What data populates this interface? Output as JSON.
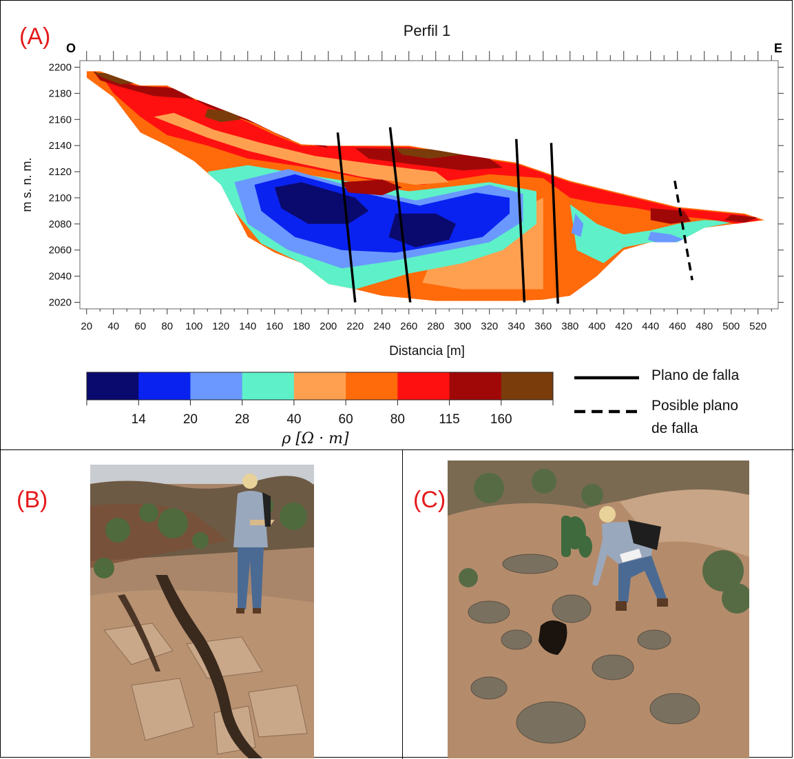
{
  "panels": {
    "a": "(A)",
    "b": "(B)",
    "c": "(C)"
  },
  "chart_data": {
    "type": "heatmap",
    "title": "Perfil 1",
    "xlabel": "Distancia [m]",
    "ylabel": "m s. n. m.",
    "xlim": [
      15,
      535
    ],
    "ylim": [
      2015,
      2205
    ],
    "x_ticks": [
      20,
      40,
      60,
      80,
      100,
      120,
      140,
      160,
      180,
      200,
      220,
      240,
      260,
      280,
      300,
      320,
      340,
      360,
      380,
      400,
      420,
      440,
      460,
      480,
      500,
      520
    ],
    "y_ticks": [
      2020,
      2040,
      2060,
      2080,
      2100,
      2120,
      2140,
      2160,
      2180,
      2200
    ],
    "direction_left": "O",
    "direction_right": "E",
    "colorbar": {
      "label": "ρ [Ω · m]",
      "boundaries": [
        14,
        20,
        28,
        40,
        60,
        80,
        115,
        160
      ],
      "colors": [
        "#0a0a6e",
        "#0a22f0",
        "#6a98ff",
        "#5ef0c8",
        "#ffa050",
        "#ff6a0a",
        "#ff1010",
        "#a00808",
        "#7a3c0a"
      ]
    },
    "profile_top": [
      [
        20,
        2197
      ],
      [
        30,
        2197
      ],
      [
        60,
        2186
      ],
      [
        80,
        2186
      ],
      [
        100,
        2176
      ],
      [
        140,
        2160
      ],
      [
        160,
        2150
      ],
      [
        180,
        2141
      ],
      [
        200,
        2140
      ],
      [
        260,
        2140
      ],
      [
        300,
        2133
      ],
      [
        340,
        2127
      ],
      [
        380,
        2113
      ],
      [
        420,
        2103
      ],
      [
        460,
        2093
      ],
      [
        510,
        2088
      ],
      [
        525,
        2083
      ]
    ],
    "profile_bottom": [
      [
        525,
        2083
      ],
      [
        480,
        2077
      ],
      [
        460,
        2066
      ],
      [
        440,
        2066
      ],
      [
        420,
        2060
      ],
      [
        400,
        2040
      ],
      [
        380,
        2025
      ],
      [
        360,
        2022
      ],
      [
        340,
        2021
      ],
      [
        320,
        2021
      ],
      [
        280,
        2021
      ],
      [
        260,
        2023
      ],
      [
        240,
        2025
      ],
      [
        220,
        2030
      ],
      [
        200,
        2034
      ],
      [
        180,
        2050
      ],
      [
        160,
        2058
      ],
      [
        140,
        2070
      ],
      [
        120,
        2110
      ],
      [
        100,
        2128
      ],
      [
        80,
        2140
      ],
      [
        60,
        2150
      ],
      [
        40,
        2177
      ],
      [
        20,
        2192
      ]
    ],
    "zones": [
      {
        "color_index": 5,
        "polygon": [
          [
            300,
            2100
          ],
          [
            360,
            2120
          ],
          [
            400,
            2098
          ],
          [
            380,
            2060
          ],
          [
            360,
            2030
          ],
          [
            300,
            2025
          ],
          [
            270,
            2028
          ],
          [
            260,
            2055
          ]
        ]
      },
      {
        "color_index": 4,
        "polygon": [
          [
            280,
            2060
          ],
          [
            320,
            2070
          ],
          [
            340,
            2090
          ],
          [
            360,
            2100
          ],
          [
            360,
            2030
          ],
          [
            300,
            2030
          ],
          [
            270,
            2035
          ]
        ]
      },
      {
        "color_index": 3,
        "polygon": [
          [
            110,
            2120
          ],
          [
            140,
            2125
          ],
          [
            200,
            2115
          ],
          [
            260,
            2105
          ],
          [
            320,
            2112
          ],
          [
            355,
            2105
          ],
          [
            355,
            2080
          ],
          [
            330,
            2060
          ],
          [
            300,
            2050
          ],
          [
            260,
            2042
          ],
          [
            220,
            2030
          ],
          [
            200,
            2034
          ],
          [
            180,
            2050
          ],
          [
            150,
            2065
          ],
          [
            130,
            2090
          ]
        ]
      },
      {
        "color_index": 3,
        "polygon": [
          [
            380,
            2095
          ],
          [
            400,
            2080
          ],
          [
            420,
            2072
          ],
          [
            440,
            2075
          ],
          [
            460,
            2080
          ],
          [
            480,
            2083
          ],
          [
            505,
            2082
          ],
          [
            480,
            2077
          ],
          [
            460,
            2066
          ],
          [
            440,
            2066
          ],
          [
            420,
            2062
          ],
          [
            405,
            2050
          ],
          [
            385,
            2060
          ]
        ]
      },
      {
        "color_index": 2,
        "polygon": [
          [
            130,
            2112
          ],
          [
            170,
            2122
          ],
          [
            220,
            2108
          ],
          [
            265,
            2098
          ],
          [
            320,
            2110
          ],
          [
            345,
            2103
          ],
          [
            345,
            2082
          ],
          [
            320,
            2066
          ],
          [
            290,
            2060
          ],
          [
            250,
            2052
          ],
          [
            210,
            2046
          ],
          [
            170,
            2060
          ],
          [
            140,
            2080
          ]
        ]
      },
      {
        "color_index": 2,
        "polygon": [
          [
            440,
            2074
          ],
          [
            455,
            2072
          ],
          [
            465,
            2068
          ],
          [
            450,
            2064
          ],
          [
            438,
            2068
          ]
        ]
      },
      {
        "color_index": 2,
        "polygon": [
          [
            384,
            2088
          ],
          [
            390,
            2080
          ],
          [
            388,
            2070
          ],
          [
            381,
            2073
          ]
        ]
      },
      {
        "color_index": 1,
        "polygon": [
          [
            145,
            2110
          ],
          [
            175,
            2118
          ],
          [
            225,
            2104
          ],
          [
            268,
            2094
          ],
          [
            310,
            2104
          ],
          [
            335,
            2100
          ],
          [
            335,
            2088
          ],
          [
            315,
            2070
          ],
          [
            290,
            2065
          ],
          [
            250,
            2058
          ],
          [
            210,
            2060
          ],
          [
            175,
            2070
          ],
          [
            150,
            2090
          ]
        ]
      },
      {
        "color_index": 0,
        "polygon": [
          [
            160,
            2108
          ],
          [
            180,
            2112
          ],
          [
            220,
            2100
          ],
          [
            230,
            2090
          ],
          [
            215,
            2080
          ],
          [
            185,
            2080
          ],
          [
            165,
            2092
          ]
        ]
      },
      {
        "color_index": 0,
        "polygon": [
          [
            250,
            2088
          ],
          [
            280,
            2088
          ],
          [
            295,
            2080
          ],
          [
            290,
            2068
          ],
          [
            265,
            2062
          ],
          [
            245,
            2070
          ]
        ]
      },
      {
        "color_index": 6,
        "polygon": [
          [
            30,
            2195
          ],
          [
            60,
            2185
          ],
          [
            80,
            2185
          ],
          [
            100,
            2175
          ],
          [
            140,
            2158
          ],
          [
            160,
            2148
          ],
          [
            180,
            2140
          ],
          [
            260,
            2139
          ],
          [
            300,
            2132
          ],
          [
            340,
            2126
          ],
          [
            380,
            2112
          ],
          [
            420,
            2102
          ],
          [
            460,
            2092
          ],
          [
            510,
            2087
          ],
          [
            522,
            2083
          ],
          [
            505,
            2080
          ],
          [
            480,
            2084
          ],
          [
            460,
            2086
          ],
          [
            430,
            2092
          ],
          [
            400,
            2096
          ],
          [
            380,
            2100
          ],
          [
            360,
            2115
          ],
          [
            320,
            2118
          ],
          [
            270,
            2110
          ],
          [
            230,
            2114
          ],
          [
            180,
            2124
          ],
          [
            140,
            2130
          ],
          [
            110,
            2140
          ],
          [
            80,
            2148
          ],
          [
            60,
            2162
          ],
          [
            40,
            2180
          ]
        ]
      },
      {
        "color_index": 4,
        "polygon": [
          [
            70,
            2162
          ],
          [
            110,
            2146
          ],
          [
            140,
            2136
          ],
          [
            180,
            2126
          ],
          [
            225,
            2116
          ],
          [
            265,
            2110
          ],
          [
            290,
            2112
          ],
          [
            280,
            2120
          ],
          [
            240,
            2125
          ],
          [
            190,
            2132
          ],
          [
            150,
            2142
          ],
          [
            115,
            2152
          ],
          [
            85,
            2165
          ]
        ]
      },
      {
        "color_index": 7,
        "polygon": [
          [
            25,
            2197
          ],
          [
            55,
            2186
          ],
          [
            85,
            2184
          ],
          [
            110,
            2170
          ],
          [
            145,
            2157
          ],
          [
            170,
            2145
          ],
          [
            200,
            2138
          ],
          [
            180,
            2158
          ],
          [
            150,
            2166
          ],
          [
            120,
            2172
          ],
          [
            95,
            2176
          ],
          [
            70,
            2178
          ],
          [
            45,
            2185
          ],
          [
            30,
            2190
          ]
        ]
      },
      {
        "color_index": 7,
        "polygon": [
          [
            220,
            2138
          ],
          [
            280,
            2137
          ],
          [
            320,
            2130
          ],
          [
            330,
            2123
          ],
          [
            300,
            2121
          ],
          [
            260,
            2126
          ],
          [
            230,
            2130
          ]
        ]
      },
      {
        "color_index": 7,
        "polygon": [
          [
            210,
            2112
          ],
          [
            240,
            2114
          ],
          [
            255,
            2108
          ],
          [
            240,
            2102
          ],
          [
            215,
            2104
          ]
        ]
      },
      {
        "color_index": 7,
        "polygon": [
          [
            440,
            2092
          ],
          [
            465,
            2090
          ],
          [
            470,
            2082
          ],
          [
            455,
            2080
          ],
          [
            440,
            2083
          ]
        ]
      },
      {
        "color_index": 7,
        "polygon": [
          [
            500,
            2087
          ],
          [
            520,
            2085
          ],
          [
            510,
            2081
          ],
          [
            495,
            2083
          ]
        ]
      },
      {
        "color_index": 8,
        "polygon": [
          [
            25,
            2196
          ],
          [
            40,
            2195
          ],
          [
            60,
            2188
          ],
          [
            45,
            2187
          ],
          [
            32,
            2192
          ]
        ]
      },
      {
        "color_index": 8,
        "polygon": [
          [
            110,
            2168
          ],
          [
            130,
            2166
          ],
          [
            135,
            2160
          ],
          [
            120,
            2158
          ],
          [
            108,
            2162
          ]
        ]
      },
      {
        "color_index": 8,
        "polygon": [
          [
            250,
            2138
          ],
          [
            280,
            2137
          ],
          [
            300,
            2133
          ],
          [
            275,
            2130
          ],
          [
            255,
            2133
          ]
        ]
      }
    ],
    "faults": [
      {
        "style": "solid",
        "from": [
          207,
          2150
        ],
        "to": [
          220,
          2020
        ]
      },
      {
        "style": "solid",
        "from": [
          246,
          2154
        ],
        "to": [
          261,
          2020
        ]
      },
      {
        "style": "solid",
        "from": [
          340,
          2145
        ],
        "to": [
          346,
          2020
        ]
      },
      {
        "style": "solid",
        "from": [
          366,
          2142
        ],
        "to": [
          371,
          2019
        ]
      },
      {
        "style": "dashed",
        "from": [
          458,
          2113
        ],
        "to": [
          471,
          2037
        ]
      }
    ],
    "legend": [
      {
        "style": "solid",
        "label": "Plano de falla"
      },
      {
        "style": "dashed",
        "label": "Posible plano",
        "label2": "de falla"
      }
    ]
  }
}
